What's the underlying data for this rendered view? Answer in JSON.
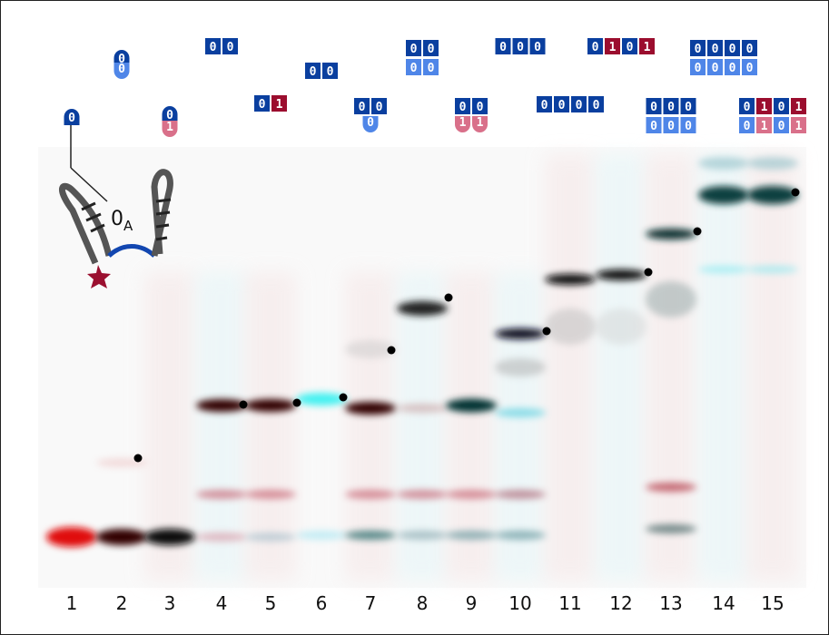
{
  "schematic_label": {
    "main": "0",
    "sub": "A"
  },
  "lanes": [
    {
      "number": "1",
      "rows": [
        [
          "0"
        ]
      ]
    },
    {
      "number": "2",
      "rows": [
        [
          "0"
        ],
        [
          "0"
        ]
      ]
    },
    {
      "number": "3",
      "rows": [
        [
          "0"
        ],
        [
          "1"
        ]
      ]
    },
    {
      "number": "4",
      "rows": [
        [
          "0",
          "0"
        ]
      ]
    },
    {
      "number": "5",
      "rows": [
        [
          "0",
          "1"
        ]
      ]
    },
    {
      "number": "6",
      "rows": [
        [
          "0",
          "0"
        ]
      ]
    },
    {
      "number": "7",
      "rows": [
        [
          "0",
          "0"
        ],
        [
          "0"
        ]
      ]
    },
    {
      "number": "8",
      "rows": [
        [
          "0",
          "0"
        ],
        [
          "0",
          "0"
        ]
      ]
    },
    {
      "number": "9",
      "rows": [
        [
          "0",
          "0"
        ],
        [
          "1",
          "1"
        ]
      ]
    },
    {
      "number": "10",
      "rows": [
        [
          "0",
          "0",
          "0"
        ]
      ]
    },
    {
      "number": "11",
      "rows": [
        [
          "0",
          "0",
          "0",
          "0"
        ]
      ]
    },
    {
      "number": "12",
      "rows": [
        [
          "0",
          "1",
          "0",
          "1"
        ]
      ]
    },
    {
      "number": "13",
      "rows": [
        [
          "0",
          "0",
          "0"
        ],
        [
          "0",
          "0",
          "0"
        ]
      ]
    },
    {
      "number": "14",
      "rows": [
        [
          "0",
          "0",
          "0",
          "0"
        ],
        [
          "0",
          "0",
          "0",
          "0"
        ]
      ]
    },
    {
      "number": "15",
      "rows": [
        [
          "0",
          "1",
          "0",
          "1"
        ],
        [
          "0",
          "1",
          "0",
          "1"
        ]
      ]
    }
  ]
}
